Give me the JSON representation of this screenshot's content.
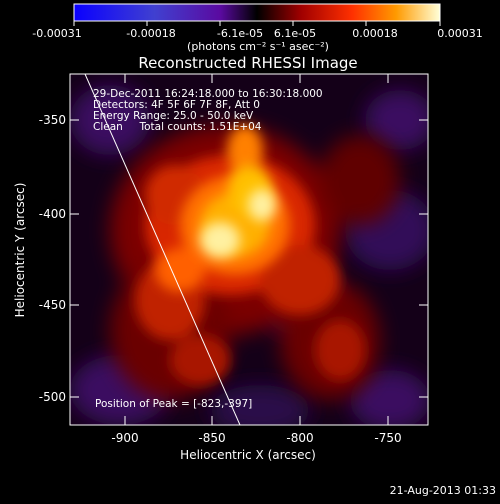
{
  "colorbar": {
    "tick_labels": [
      "-0.00031",
      "-0.00018",
      "-6.1e-05",
      "6.1e-05",
      "0.00018",
      "0.00031"
    ],
    "unit_label": "(photons cm⁻² s⁻¹ asec⁻²)"
  },
  "plot": {
    "title": "Reconstructed RHESSI Image",
    "xlabel": "Heliocentric X (arcsec)",
    "ylabel": "Heliocentric Y (arcsec)",
    "xticks": [
      "-900",
      "-850",
      "-800",
      "-750"
    ],
    "yticks": [
      "-350",
      "-400",
      "-450",
      "-500"
    ],
    "info": [
      "29-Dec-2011 16:24:18.000 to 16:30:18.000",
      "Detectors: 4F 5F 6F 7F 8F, Att 0",
      "Energy Range: 25.0 - 50.0 keV",
      "Clean     Total counts: 1.51E+04"
    ],
    "peak_label": "Position of Peak = [-823,-397]"
  },
  "footer": {
    "timestamp": "21-Aug-2013 01:33"
  }
}
